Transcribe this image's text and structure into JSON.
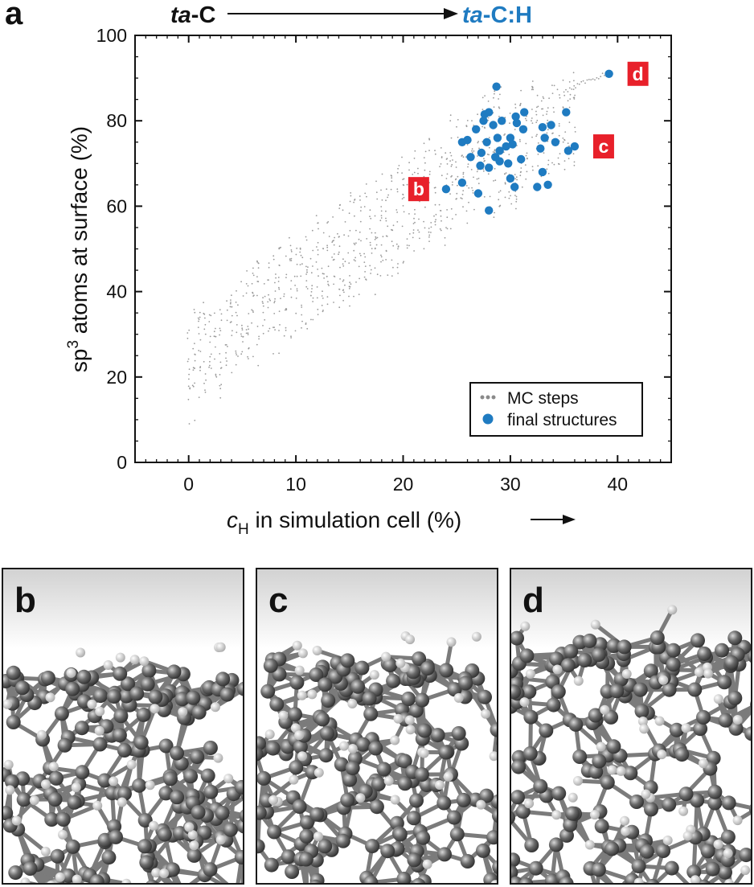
{
  "figure": {
    "panel_a_label": "a",
    "arrow_from": "ta",
    "arrow_from_suffix": "-C",
    "arrow_to": "ta",
    "arrow_to_suffix": "-C:H",
    "xlabel_var": "c",
    "xlabel_sub": "H",
    "xlabel_rest": " in simulation cell (%)",
    "ylabel_pre": "sp",
    "ylabel_sup": "3",
    "ylabel_rest": " atoms at surface (%)",
    "legend": {
      "mc": "MC steps",
      "final": "final structures"
    },
    "highlight_labels": {
      "b": "b",
      "c": "c",
      "d": "d"
    },
    "panels": [
      {
        "id": "b",
        "label": "b"
      },
      {
        "id": "c",
        "label": "c"
      },
      {
        "id": "d",
        "label": "d"
      }
    ]
  },
  "colors": {
    "accent": "#1f7bc1",
    "mc": "#9a9a9a",
    "label_box": "#e8202a",
    "atom": "#6e6e6e",
    "hydrogen": "#e6e6e6"
  },
  "chart_data": {
    "type": "scatter",
    "xlabel": "cH in simulation cell (%)",
    "ylabel": "sp3 atoms at surface (%)",
    "xlim": [
      -5,
      45
    ],
    "ylim": [
      0,
      100
    ],
    "xticks": [
      0,
      10,
      20,
      30,
      40
    ],
    "yticks": [
      0,
      20,
      40,
      60,
      80,
      100
    ],
    "legend_position": "bottom-right",
    "series": [
      {
        "name": "MC steps",
        "style": "small grey dots",
        "density_band": {
          "x_range": [
            0,
            39
          ],
          "lower_at_x0": 9,
          "upper_at_x0": 36,
          "lower_at_x28": 58,
          "upper_at_x28": 87
        }
      },
      {
        "name": "final structures",
        "points": [
          [
            24.0,
            64.0
          ],
          [
            25.5,
            65.5
          ],
          [
            25.5,
            75.0
          ],
          [
            26.0,
            75.5
          ],
          [
            26.3,
            71.5
          ],
          [
            26.8,
            78.0
          ],
          [
            27.0,
            63.0
          ],
          [
            27.2,
            69.5
          ],
          [
            27.3,
            72.5
          ],
          [
            27.5,
            80.0
          ],
          [
            27.6,
            81.5
          ],
          [
            27.8,
            75.0
          ],
          [
            28.0,
            82.0
          ],
          [
            28.0,
            69.0
          ],
          [
            28.0,
            59.0
          ],
          [
            28.4,
            79.0
          ],
          [
            28.6,
            71.5
          ],
          [
            28.7,
            88.0
          ],
          [
            28.8,
            76.0
          ],
          [
            29.0,
            73.0
          ],
          [
            29.0,
            70.5
          ],
          [
            29.2,
            80.0
          ],
          [
            29.6,
            74.0
          ],
          [
            29.8,
            70.0
          ],
          [
            30.0,
            76.0
          ],
          [
            30.0,
            66.5
          ],
          [
            30.2,
            74.5
          ],
          [
            30.4,
            64.5
          ],
          [
            30.5,
            81.0
          ],
          [
            30.6,
            79.5
          ],
          [
            31.0,
            71.0
          ],
          [
            31.2,
            78.0
          ],
          [
            31.3,
            82.0
          ],
          [
            32.5,
            64.5
          ],
          [
            32.8,
            73.5
          ],
          [
            33.0,
            78.5
          ],
          [
            33.0,
            68.0
          ],
          [
            33.2,
            76.0
          ],
          [
            33.5,
            65.0
          ],
          [
            33.8,
            79.0
          ],
          [
            34.2,
            75.0
          ],
          [
            35.2,
            82.0
          ],
          [
            35.4,
            73.0
          ],
          [
            36.0,
            74.0
          ],
          [
            39.2,
            91.0
          ]
        ]
      }
    ],
    "highlights": [
      {
        "label": "b",
        "x": 24.0,
        "y": 64.0
      },
      {
        "label": "c",
        "x": 36.0,
        "y": 74.0
      },
      {
        "label": "d",
        "x": 39.2,
        "y": 91.0
      }
    ]
  }
}
